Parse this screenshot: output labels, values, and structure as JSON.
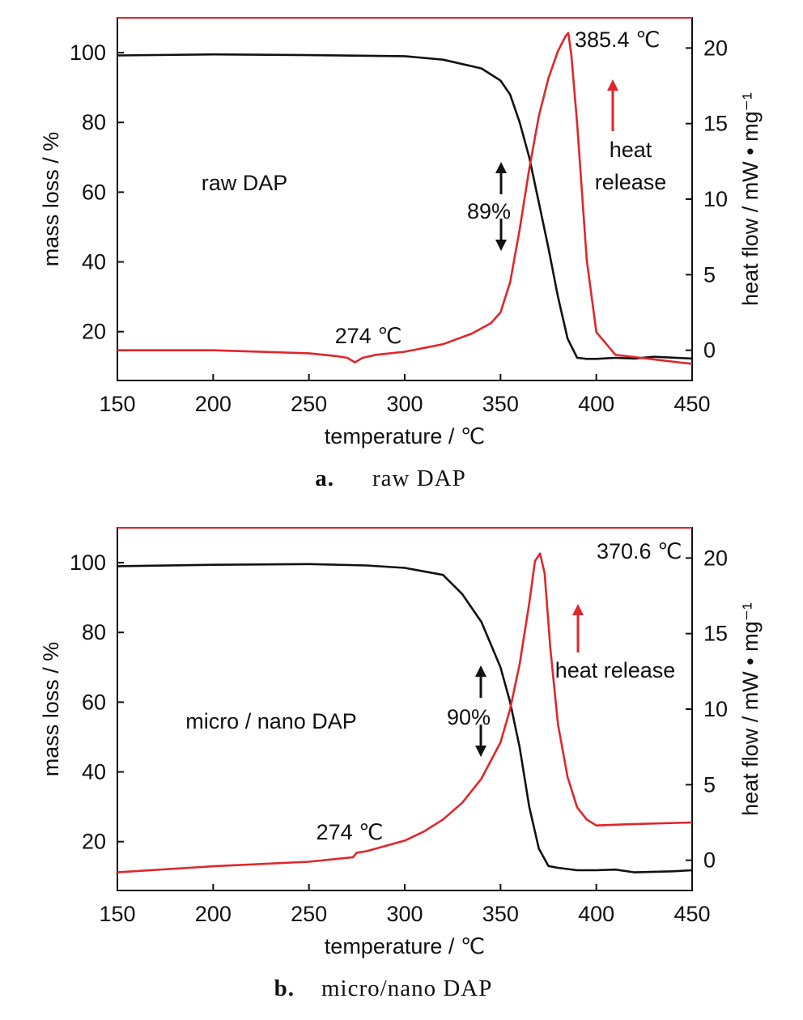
{
  "colors": {
    "mass": "#111111",
    "heat": "#e0262b",
    "frame": "#111111"
  },
  "chart_data": [
    {
      "type": "line",
      "caption_letter": "a.",
      "caption_text": "raw DAP",
      "sample_label": "raw DAP",
      "xlabel": "temperature  / ℃",
      "ylabel_left": "mass loss / %",
      "ylabel_right": "heat flow /  mW • mg⁻¹",
      "xlim": [
        150,
        450
      ],
      "ylim_left": [
        6,
        110
      ],
      "ylim_right": [
        -2,
        22
      ],
      "xticks": [
        "150",
        "200",
        "250",
        "300",
        "350",
        "400",
        "450"
      ],
      "yticks_left": [
        "20",
        "40",
        "60",
        "80",
        "100"
      ],
      "yticks_right": [
        "0",
        "5",
        "10",
        "15",
        "20"
      ],
      "peak_label": "385.4 ℃",
      "dip_label": "274 ℃",
      "mass_change_label": "89%",
      "heat_release_label": [
        "heat",
        "release"
      ],
      "series": [
        {
          "axis": "left",
          "color": "#111111",
          "x": [
            150,
            200,
            250,
            300,
            320,
            340,
            350,
            355,
            360,
            365,
            370,
            375,
            380,
            385,
            390,
            395,
            400,
            410,
            420,
            430,
            450
          ],
          "y": [
            99.2,
            99.5,
            99.3,
            99.0,
            98.0,
            95.5,
            92,
            88,
            80,
            70,
            57,
            44,
            30,
            18,
            12.5,
            12.2,
            12.2,
            12.5,
            12.3,
            12.8,
            12.3
          ]
        },
        {
          "axis": "right",
          "color": "#e0262b",
          "x": [
            150,
            200,
            250,
            265,
            270,
            274,
            278,
            285,
            300,
            320,
            335,
            345,
            350,
            355,
            360,
            365,
            370,
            375,
            380,
            384,
            385.4,
            387,
            390,
            395,
            400,
            410,
            430,
            450
          ],
          "y": [
            0,
            0,
            -0.2,
            -0.4,
            -0.5,
            -0.8,
            -0.5,
            -0.3,
            -0.1,
            0.4,
            1.1,
            1.8,
            2.5,
            4.5,
            8,
            12,
            15.5,
            18,
            19.8,
            20.8,
            21,
            19.5,
            15,
            6,
            1.2,
            -0.3,
            -0.6,
            -0.9
          ]
        }
      ]
    },
    {
      "type": "line",
      "caption_letter": "b.",
      "caption_text": "micro/nano DAP",
      "sample_label": "micro / nano DAP",
      "xlabel": "temperature  / ℃",
      "ylabel_left": "mass loss / %",
      "ylabel_right": "heat flow /  mW • mg⁻¹",
      "xlim": [
        150,
        450
      ],
      "ylim_left": [
        6,
        110
      ],
      "ylim_right": [
        -2,
        22
      ],
      "xticks": [
        "150",
        "200",
        "250",
        "300",
        "350",
        "400",
        "450"
      ],
      "yticks_left": [
        "20",
        "40",
        "60",
        "80",
        "100"
      ],
      "yticks_right": [
        "0",
        "5",
        "10",
        "15",
        "20"
      ],
      "peak_label": "370.6 ℃",
      "dip_label": "274 ℃",
      "mass_change_label": "90%",
      "heat_release_label": [
        "heat release"
      ],
      "series": [
        {
          "axis": "left",
          "color": "#111111",
          "x": [
            150,
            200,
            250,
            280,
            300,
            320,
            330,
            340,
            350,
            355,
            360,
            365,
            370,
            375,
            380,
            390,
            400,
            410,
            420,
            440,
            450
          ],
          "y": [
            99.0,
            99.4,
            99.6,
            99.2,
            98.5,
            96.5,
            91,
            83,
            70,
            60,
            47,
            30,
            18,
            13,
            12.5,
            11.8,
            11.8,
            12,
            11.2,
            11.5,
            11.8
          ],
          "x_note": ""
        },
        {
          "axis": "right",
          "color": "#e0262b",
          "x": [
            150,
            200,
            250,
            273,
            275,
            280,
            300,
            310,
            320,
            330,
            340,
            350,
            355,
            360,
            365,
            368,
            370.6,
            373,
            376,
            380,
            385,
            390,
            395,
            400,
            420,
            450
          ],
          "y": [
            -0.8,
            -0.4,
            -0.1,
            0.2,
            0.5,
            0.6,
            1.3,
            1.9,
            2.7,
            3.8,
            5.4,
            7.8,
            10,
            13,
            17,
            19.8,
            20.3,
            19,
            14,
            9,
            5.5,
            3.5,
            2.7,
            2.3,
            2.4,
            2.5
          ]
        }
      ]
    }
  ]
}
